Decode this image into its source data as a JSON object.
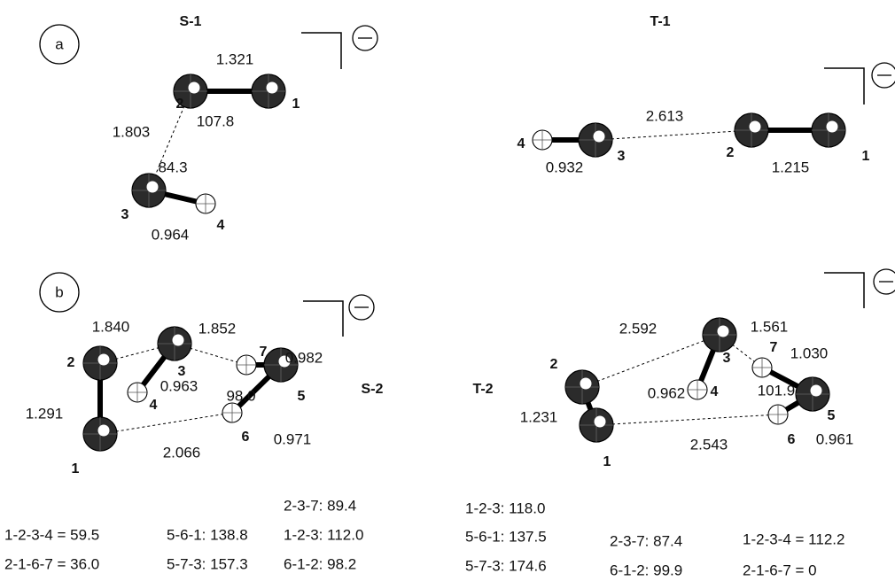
{
  "panels": [
    "a",
    "b"
  ],
  "structures": [
    {
      "name": "S-1",
      "atom_labels": [
        "1",
        "2",
        "3",
        "4"
      ],
      "bond_lengths": [
        "1.321",
        "1.803",
        "0.964"
      ],
      "angles": [
        "107.8",
        "84.3"
      ]
    },
    {
      "name": "T-1",
      "atom_labels": [
        "1",
        "2",
        "3",
        "4"
      ],
      "bond_lengths": [
        "2.613",
        "0.932",
        "1.215"
      ]
    },
    {
      "name": "S-2",
      "atom_labels": [
        "1",
        "2",
        "3",
        "4",
        "5",
        "6",
        "7"
      ],
      "bond_lengths": [
        "1.840",
        "1.852",
        "0.982",
        "0.963",
        "1.291",
        "0.971",
        "2.066"
      ],
      "angles": [
        "98.0"
      ]
    },
    {
      "name": "T-2",
      "atom_labels": [
        "1",
        "2",
        "3",
        "4",
        "5",
        "6",
        "7"
      ],
      "bond_lengths": [
        "2.592",
        "1.561",
        "1.030",
        "0.962",
        "1.231",
        "0.961",
        "2.543"
      ],
      "angles": [
        "101.9"
      ]
    }
  ],
  "geometry_s2": [
    "2-3-7: 89.4",
    "1-2-3-4 = 59.5",
    "5-6-1: 138.8",
    "1-2-3: 112.0",
    "2-1-6-7 = 36.0",
    "5-7-3: 157.3",
    "6-1-2: 98.2"
  ],
  "geometry_t2": [
    "1-2-3: 118.0",
    "5-6-1: 137.5",
    "2-3-7: 87.4",
    "1-2-3-4 = 112.2",
    "5-7-3: 174.6",
    "6-1-2: 99.9",
    "2-1-6-7 = 0"
  ]
}
